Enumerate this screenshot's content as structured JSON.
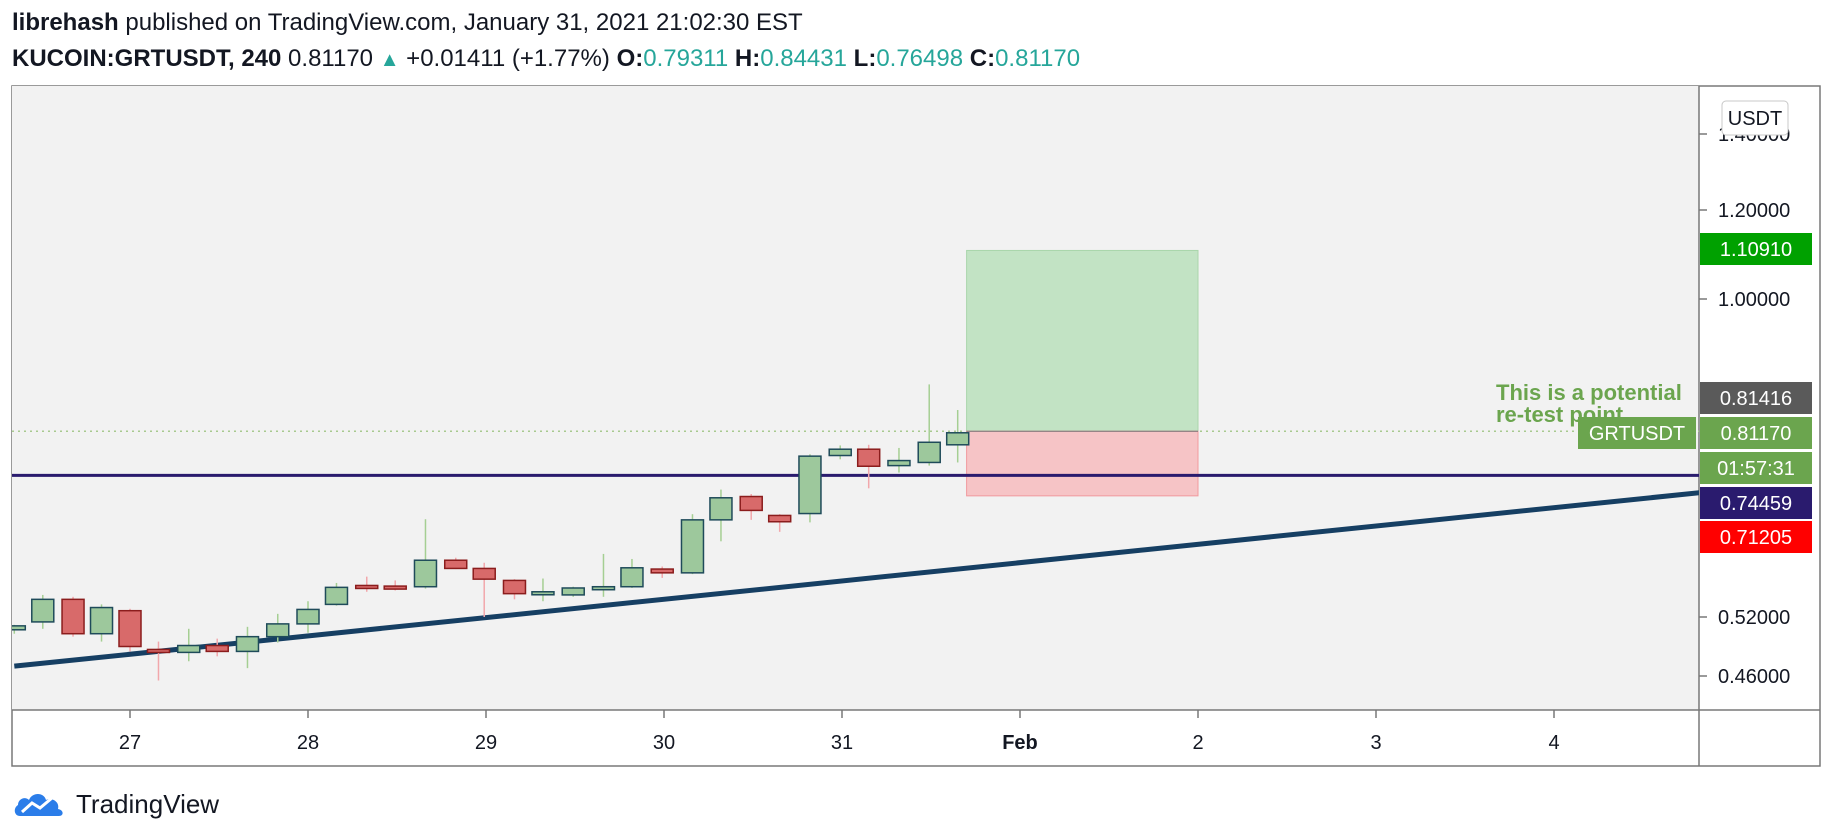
{
  "header": {
    "author": "librehash",
    "published_text": "published on TradingView.com, January 31, 2021 21:02:30 EST",
    "symbol": "KUCOIN:GRTUSDT, 240",
    "last": "0.81170",
    "change": "+0.01411 (+1.77%)",
    "o_label": "O:",
    "o_value": "0.79311",
    "h_label": "H:",
    "h_value": "0.84431",
    "l_label": "L:",
    "l_value": "0.76498",
    "c_label": "C:",
    "c_value": "0.81170"
  },
  "footer": {
    "brand": "TradingView",
    "logo_icon": "tradingview-cloud-icon"
  },
  "chart_data": {
    "type": "candlestick",
    "currency_label": "USDT",
    "y_ticks": [
      {
        "value": 0.46,
        "label": "0.46000"
      },
      {
        "value": 0.52,
        "label": "0.52000"
      },
      {
        "value": 1.0,
        "label": "1.00000"
      },
      {
        "value": 1.2,
        "label": "1.20000"
      },
      {
        "value": 1.4,
        "label": "1.40000"
      }
    ],
    "x_ticks": [
      {
        "t": 0,
        "label": "27"
      },
      {
        "t": 1,
        "label": "28"
      },
      {
        "t": 2,
        "label": "29"
      },
      {
        "t": 3,
        "label": "30"
      },
      {
        "t": 4,
        "label": "31"
      },
      {
        "t": 5,
        "label": "Feb",
        "bold": true
      },
      {
        "t": 6,
        "label": "2"
      },
      {
        "t": 7,
        "label": "3"
      },
      {
        "t": 8,
        "label": "4"
      }
    ],
    "candles": [
      {
        "t": -0.65,
        "o": 0.507,
        "h": 0.512,
        "l": 0.503,
        "c": 0.511
      },
      {
        "t": -0.49,
        "o": 0.515,
        "h": 0.555,
        "l": 0.508,
        "c": 0.548
      },
      {
        "t": -0.32,
        "o": 0.548,
        "h": 0.552,
        "l": 0.5,
        "c": 0.503
      },
      {
        "t": -0.16,
        "o": 0.503,
        "h": 0.54,
        "l": 0.495,
        "c": 0.535
      },
      {
        "t": 0.0,
        "o": 0.53,
        "h": 0.533,
        "l": 0.485,
        "c": 0.49
      },
      {
        "t": 0.16,
        "o": 0.487,
        "h": 0.495,
        "l": 0.455,
        "c": 0.484
      },
      {
        "t": 0.33,
        "o": 0.484,
        "h": 0.508,
        "l": 0.475,
        "c": 0.491
      },
      {
        "t": 0.49,
        "o": 0.491,
        "h": 0.498,
        "l": 0.48,
        "c": 0.485
      },
      {
        "t": 0.66,
        "o": 0.485,
        "h": 0.51,
        "l": 0.468,
        "c": 0.5
      },
      {
        "t": 0.83,
        "o": 0.5,
        "h": 0.525,
        "l": 0.494,
        "c": 0.513
      },
      {
        "t": 1.0,
        "o": 0.513,
        "h": 0.545,
        "l": 0.504,
        "c": 0.532
      },
      {
        "t": 1.16,
        "o": 0.54,
        "h": 0.574,
        "l": 0.538,
        "c": 0.567
      },
      {
        "t": 1.33,
        "o": 0.57,
        "h": 0.584,
        "l": 0.56,
        "c": 0.568
      },
      {
        "t": 1.49,
        "o": 0.569,
        "h": 0.578,
        "l": 0.562,
        "c": 0.567
      },
      {
        "t": 1.66,
        "o": 0.568,
        "h": 0.675,
        "l": 0.565,
        "c": 0.61
      },
      {
        "t": 1.83,
        "o": 0.61,
        "h": 0.614,
        "l": 0.596,
        "c": 0.597
      },
      {
        "t": 1.99,
        "o": 0.597,
        "h": 0.606,
        "l": 0.52,
        "c": 0.58
      },
      {
        "t": 2.16,
        "o": 0.578,
        "h": 0.58,
        "l": 0.548,
        "c": 0.557
      },
      {
        "t": 2.32,
        "o": 0.558,
        "h": 0.581,
        "l": 0.545,
        "c": 0.56
      },
      {
        "t": 2.49,
        "o": 0.555,
        "h": 0.568,
        "l": 0.552,
        "c": 0.566
      },
      {
        "t": 2.66,
        "o": 0.566,
        "h": 0.62,
        "l": 0.552,
        "c": 0.568
      },
      {
        "t": 2.82,
        "o": 0.568,
        "h": 0.612,
        "l": 0.566,
        "c": 0.598
      },
      {
        "t": 2.99,
        "o": 0.596,
        "h": 0.6,
        "l": 0.582,
        "c": 0.59
      },
      {
        "t": 3.16,
        "o": 0.59,
        "h": 0.683,
        "l": 0.588,
        "c": 0.674
      },
      {
        "t": 3.32,
        "o": 0.674,
        "h": 0.722,
        "l": 0.64,
        "c": 0.709
      },
      {
        "t": 3.49,
        "o": 0.711,
        "h": 0.715,
        "l": 0.674,
        "c": 0.689
      },
      {
        "t": 3.65,
        "o": 0.681,
        "h": 0.683,
        "l": 0.655,
        "c": 0.671
      },
      {
        "t": 3.82,
        "o": 0.684,
        "h": 0.778,
        "l": 0.67,
        "c": 0.775
      },
      {
        "t": 3.99,
        "o": 0.776,
        "h": 0.792,
        "l": 0.77,
        "c": 0.786
      },
      {
        "t": 4.15,
        "o": 0.786,
        "h": 0.793,
        "l": 0.724,
        "c": 0.759
      },
      {
        "t": 4.32,
        "o": 0.76,
        "h": 0.788,
        "l": 0.749,
        "c": 0.768
      },
      {
        "t": 4.49,
        "o": 0.765,
        "h": 0.88,
        "l": 0.76,
        "c": 0.797
      },
      {
        "t": 4.65,
        "o": 0.793,
        "h": 0.844,
        "l": 0.765,
        "c": 0.812
      }
    ],
    "horizontal_line": {
      "value": 0.74459,
      "color": "#2a1b6e"
    },
    "trendline": {
      "t1": -0.65,
      "v1": 0.47,
      "t2": 8.85,
      "v2": 0.718,
      "color": "#163f63"
    },
    "dotted_line": {
      "value": 0.81416
    },
    "position": {
      "t_start": 4.7,
      "t_end": 6.0,
      "entry": 0.81416,
      "target": 1.1091,
      "stop": 0.71205,
      "profit_color": "#c2e3c4",
      "loss_color": "#f6c4c6"
    },
    "annotation": {
      "lines": [
        "This is a potential",
        "re-test point"
      ],
      "color": "#6ba54e"
    },
    "price_labels": [
      {
        "value": 1.1091,
        "label": "1.10910",
        "bg": "#00a100",
        "fg": "#ffffff"
      },
      {
        "value": 0.81416,
        "label": "0.81416",
        "bg": "#5a5a5a",
        "fg": "#ffffff"
      },
      {
        "value": 0.8117,
        "label": "0.81170",
        "bg": "#6ba54e",
        "fg": "#ffffff",
        "tag": "GRTUSDT"
      },
      {
        "value": 0.76498,
        "label": "01:57:31",
        "bg": "#6ba54e",
        "fg": "#ffffff"
      },
      {
        "value": 0.74459,
        "label": "0.74459",
        "bg": "#2a1b6e",
        "fg": "#ffffff"
      },
      {
        "value": 0.71205,
        "label": "0.71205",
        "bg": "#ff0000",
        "fg": "#ffffff"
      }
    ],
    "grid": false,
    "bull_color": "#9dc89c",
    "bear_color": "#d86a6a"
  }
}
